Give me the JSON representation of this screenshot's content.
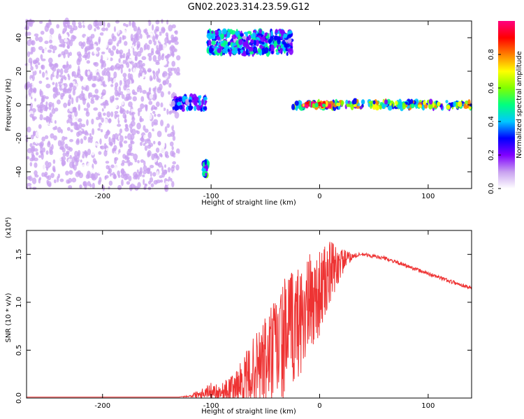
{
  "title": "GN02.2023.314.23.59.G12",
  "chart_data": [
    {
      "type": "heatmap",
      "xlabel": "Height of straight line (km)",
      "ylabel": "Frequency (Hz)",
      "xlim": [
        -270,
        140
      ],
      "ylim": [
        -50,
        50
      ],
      "xticks": [
        -200,
        -100,
        0,
        100
      ],
      "yticks": [
        -40,
        -20,
        0,
        20,
        40
      ],
      "colorbar": {
        "label": "Normalized spectral amplitude",
        "range": [
          0,
          1
        ],
        "ticks": [
          "0.0",
          "0.2",
          "0.4",
          "0.6",
          "0.8"
        ],
        "colormap": [
          "#ffffff",
          "#c8a0f0",
          "#8000ff",
          "#0000ff",
          "#00c8ff",
          "#00ff80",
          "#80ff00",
          "#ffff00",
          "#ff8000",
          "#ff0000",
          "#ff0080"
        ]
      },
      "regions": [
        {
          "name": "broadband noise",
          "x": [
            -270,
            -130
          ],
          "y": [
            -50,
            50
          ],
          "amplitude": 0.08
        },
        {
          "name": "line at 0 Hz",
          "x": [
            -135,
            -105
          ],
          "y": [
            -3,
            5
          ],
          "amplitude": 0.3
        },
        {
          "name": "line at -38 Hz",
          "x": [
            -107,
            -103
          ],
          "y": [
            -42,
            -34
          ],
          "amplitude": 0.4
        },
        {
          "name": "line at 35 Hz",
          "x": [
            -103,
            -25
          ],
          "y": [
            30,
            44
          ],
          "amplitude": 0.35
        },
        {
          "name": "carrier at 0 Hz",
          "x": [
            -25,
            140
          ],
          "y": [
            -2,
            2
          ],
          "amplitude": 0.55
        },
        {
          "name": "peak",
          "x": [
            -15,
            10
          ],
          "y": [
            -1,
            1
          ],
          "amplitude": 0.95
        }
      ]
    },
    {
      "type": "line",
      "xlabel": "Height of straight line (km)",
      "ylabel": "SNR (10 * v/v)",
      "yscale_label": "(x10⁴)",
      "xlim": [
        -270,
        140
      ],
      "ylim": [
        0,
        1.75
      ],
      "xticks": [
        -200,
        -100,
        0,
        100
      ],
      "yticks": [
        "0.0",
        "0.5",
        "1.0",
        "1.5"
      ],
      "series": [
        {
          "color": "#ee3333",
          "x": [
            -270,
            -200,
            -130,
            -120,
            -110,
            -100,
            -90,
            -80,
            -70,
            -60,
            -50,
            -40,
            -30,
            -20,
            -10,
            0,
            10,
            20,
            30,
            40,
            60,
            80,
            100,
            120,
            140
          ],
          "y": [
            0.01,
            0.01,
            0.01,
            0.02,
            0.05,
            0.08,
            0.06,
            0.1,
            0.18,
            0.3,
            0.38,
            0.5,
            0.65,
            0.8,
            0.95,
            1.1,
            1.3,
            1.42,
            1.48,
            1.5,
            1.46,
            1.38,
            1.3,
            1.22,
            1.15
          ],
          "noise_envelope": [
            0,
            0,
            0,
            0.01,
            0.05,
            0.08,
            0.1,
            0.15,
            0.25,
            0.35,
            0.5,
            0.6,
            0.65,
            0.6,
            0.55,
            0.45,
            0.35,
            0.15,
            0.03,
            0.02,
            0.02,
            0.02,
            0.02,
            0.02,
            0.02
          ]
        }
      ]
    }
  ]
}
